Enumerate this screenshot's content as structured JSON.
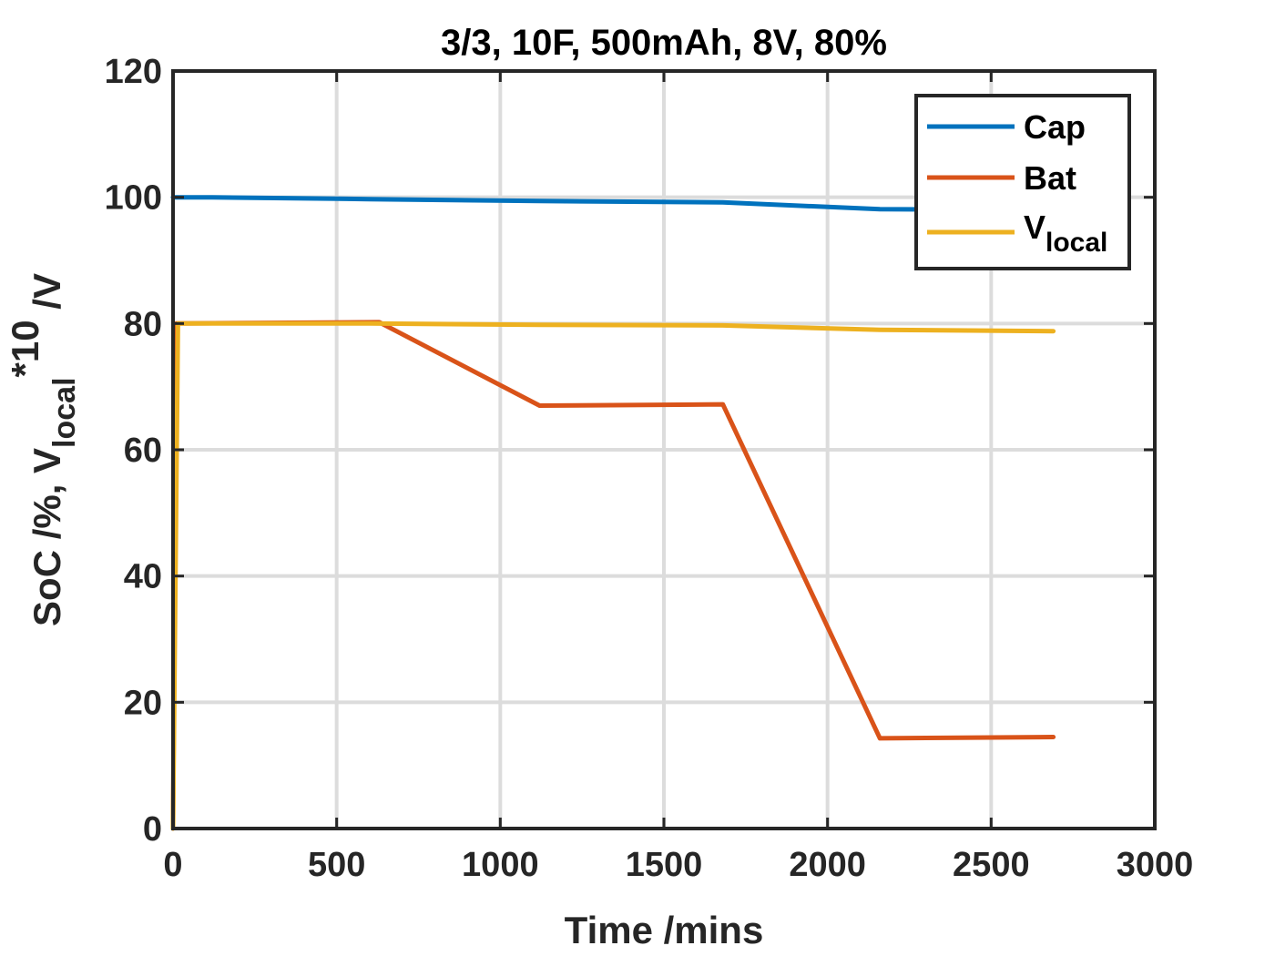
{
  "chart_data": {
    "type": "line",
    "title": "3/3, 10F, 500mAh, 8V, 80%",
    "xlabel": "Time /mins",
    "ylabel": {
      "part1": "SoC /%, V",
      "sub": "local",
      "sup": "*10",
      "part2": " /V"
    },
    "xlim": [
      0,
      3000
    ],
    "ylim": [
      0,
      120
    ],
    "x_ticks": [
      "0",
      "500",
      "1000",
      "1500",
      "2000",
      "2500",
      "3000"
    ],
    "y_ticks": [
      "0",
      "20",
      "40",
      "60",
      "80",
      "100",
      "120"
    ],
    "x_tick_values": [
      0,
      500,
      1000,
      1500,
      2000,
      2500,
      3000
    ],
    "y_tick_values": [
      0,
      20,
      40,
      60,
      80,
      100,
      120
    ],
    "grid": true,
    "legend_position": "top-right",
    "series": [
      {
        "name": "Cap",
        "color": "#0072BD",
        "x": [
          0,
          120,
          600,
          1120,
          1680,
          2160,
          2690
        ],
        "y": [
          100,
          100,
          99.7,
          99.4,
          99.2,
          98.1,
          98
        ]
      },
      {
        "name": "Bat",
        "color": "#D95319",
        "x": [
          0,
          10,
          630,
          1120,
          1680,
          2160,
          2690
        ],
        "y": [
          0,
          80,
          80.2,
          67,
          67.2,
          14.3,
          14.5
        ]
      },
      {
        "name": "V",
        "name_sub": "local",
        "color": "#EDB120",
        "x": [
          0,
          15,
          600,
          1120,
          1680,
          2160,
          2690
        ],
        "y": [
          0,
          80,
          80,
          79.8,
          79.7,
          79,
          78.8
        ]
      }
    ]
  }
}
